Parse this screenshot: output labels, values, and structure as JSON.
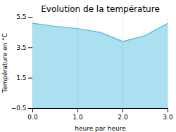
{
  "chart_data": {
    "type": "area",
    "title": "Evolution de la température",
    "xlabel": "heure par heure",
    "ylabel": "Température en °C",
    "x": [
      0,
      0.5,
      1,
      1.5,
      2,
      2.5,
      3
    ],
    "values": [
      5.1,
      4.9,
      4.75,
      4.5,
      3.9,
      4.3,
      5.1
    ],
    "color": "#44bbdd",
    "xlim": [
      0,
      3
    ],
    "ylim": [
      -0.5,
      5.5
    ],
    "xticks": [
      0,
      1,
      2,
      3
    ],
    "yticks": [
      -0.5,
      1.5,
      3.5,
      5.5
    ],
    "grid": "x"
  }
}
